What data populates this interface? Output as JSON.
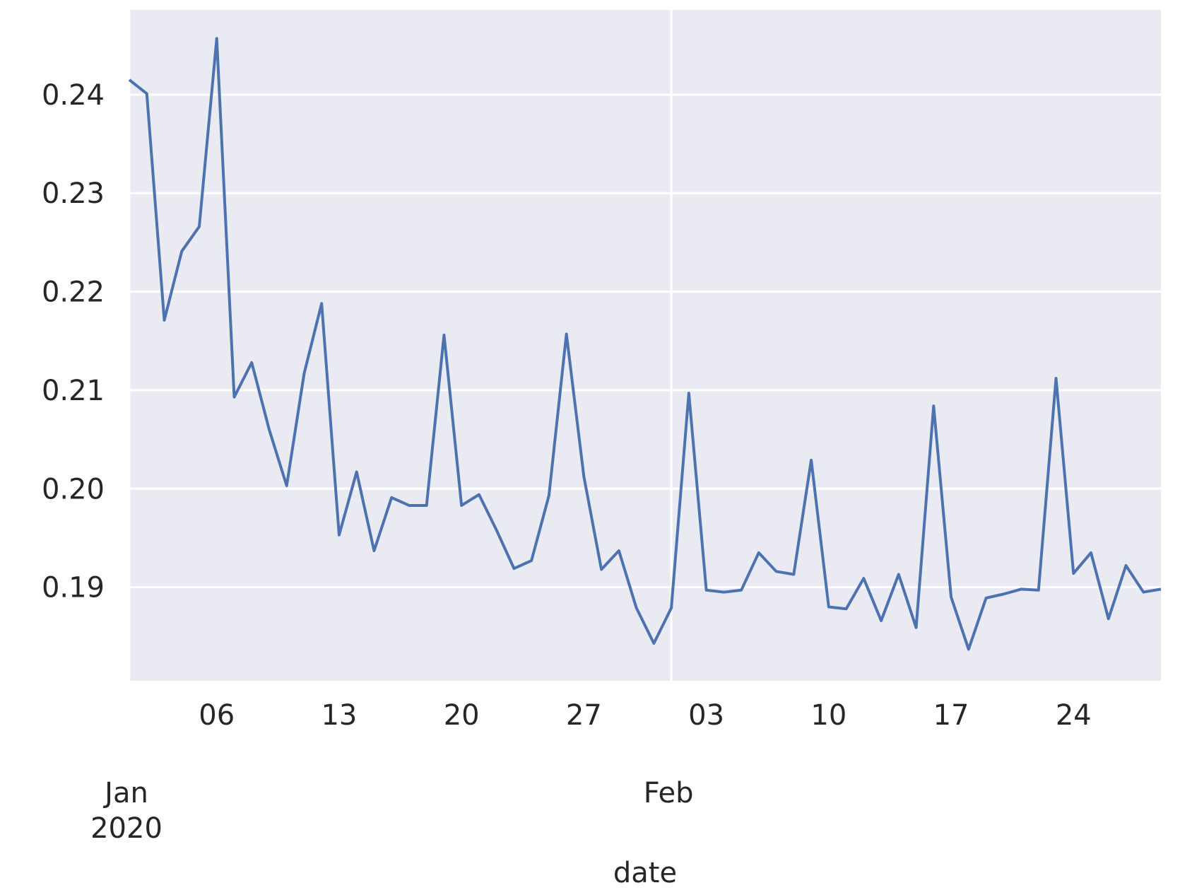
{
  "chart_data": {
    "type": "line",
    "title": "",
    "xlabel": "date",
    "ylabel": "",
    "grid": true,
    "background_color": "#EAEAF2",
    "grid_color": "#FFFFFF",
    "line_color": "#4C72B0",
    "xlim": [
      "2020-01-01",
      "2020-02-29"
    ],
    "ylim": [
      0.1805,
      0.2486
    ],
    "y_ticks": [
      {
        "value": 0.19,
        "label": "0.19"
      },
      {
        "value": 0.2,
        "label": "0.20"
      },
      {
        "value": 0.21,
        "label": "0.21"
      },
      {
        "value": 0.22,
        "label": "0.22"
      },
      {
        "value": 0.23,
        "label": "0.23"
      },
      {
        "value": 0.24,
        "label": "0.24"
      }
    ],
    "x_minor_ticks": [
      {
        "date": "2020-01-06",
        "label": "06"
      },
      {
        "date": "2020-01-13",
        "label": "13"
      },
      {
        "date": "2020-01-20",
        "label": "20"
      },
      {
        "date": "2020-01-27",
        "label": "27"
      },
      {
        "date": "2020-02-03",
        "label": "03"
      },
      {
        "date": "2020-02-10",
        "label": "10"
      },
      {
        "date": "2020-02-17",
        "label": "17"
      },
      {
        "date": "2020-02-24",
        "label": "24"
      }
    ],
    "x_major_ticks": [
      {
        "date": "2020-01-01",
        "label": "Jan\n2020"
      },
      {
        "date": "2020-02-01",
        "label": "Feb"
      }
    ],
    "series": [
      {
        "x": [
          "2020-01-01",
          "2020-01-02",
          "2020-01-03",
          "2020-01-04",
          "2020-01-05",
          "2020-01-06",
          "2020-01-07",
          "2020-01-08",
          "2020-01-09",
          "2020-01-10",
          "2020-01-11",
          "2020-01-12",
          "2020-01-13",
          "2020-01-14",
          "2020-01-15",
          "2020-01-16",
          "2020-01-17",
          "2020-01-18",
          "2020-01-19",
          "2020-01-20",
          "2020-01-21",
          "2020-01-22",
          "2020-01-23",
          "2020-01-24",
          "2020-01-25",
          "2020-01-26",
          "2020-01-27",
          "2020-01-28",
          "2020-01-29",
          "2020-01-30",
          "2020-01-31",
          "2020-02-01",
          "2020-02-02",
          "2020-02-03",
          "2020-02-04",
          "2020-02-05",
          "2020-02-06",
          "2020-02-07",
          "2020-02-08",
          "2020-02-09",
          "2020-02-10",
          "2020-02-11",
          "2020-02-12",
          "2020-02-13",
          "2020-02-14",
          "2020-02-15",
          "2020-02-16",
          "2020-02-17",
          "2020-02-18",
          "2020-02-19",
          "2020-02-20",
          "2020-02-21",
          "2020-02-22",
          "2020-02-23",
          "2020-02-24",
          "2020-02-25",
          "2020-02-26",
          "2020-02-27",
          "2020-02-28",
          "2020-02-29"
        ],
        "y": [
          0.2415,
          0.2401,
          0.2171,
          0.2241,
          0.2266,
          0.2457,
          0.2093,
          0.2128,
          0.206,
          0.2003,
          0.2117,
          0.2188,
          0.1953,
          0.2017,
          0.1937,
          0.1991,
          0.1983,
          0.1983,
          0.2156,
          0.1983,
          0.1994,
          0.1958,
          0.1919,
          0.1927,
          0.1993,
          0.2157,
          0.2012,
          0.1918,
          0.1937,
          0.1879,
          0.1843,
          0.1879,
          0.2097,
          0.1897,
          0.1895,
          0.1897,
          0.1935,
          0.1916,
          0.1913,
          0.2029,
          0.188,
          0.1878,
          0.1909,
          0.1866,
          0.1913,
          0.1859,
          0.2084,
          0.189,
          0.1837,
          0.1889,
          0.1893,
          0.1898,
          0.1897,
          0.2112,
          0.1914,
          0.1935,
          0.1868,
          0.1922,
          0.1895,
          0.1898
        ]
      }
    ]
  }
}
